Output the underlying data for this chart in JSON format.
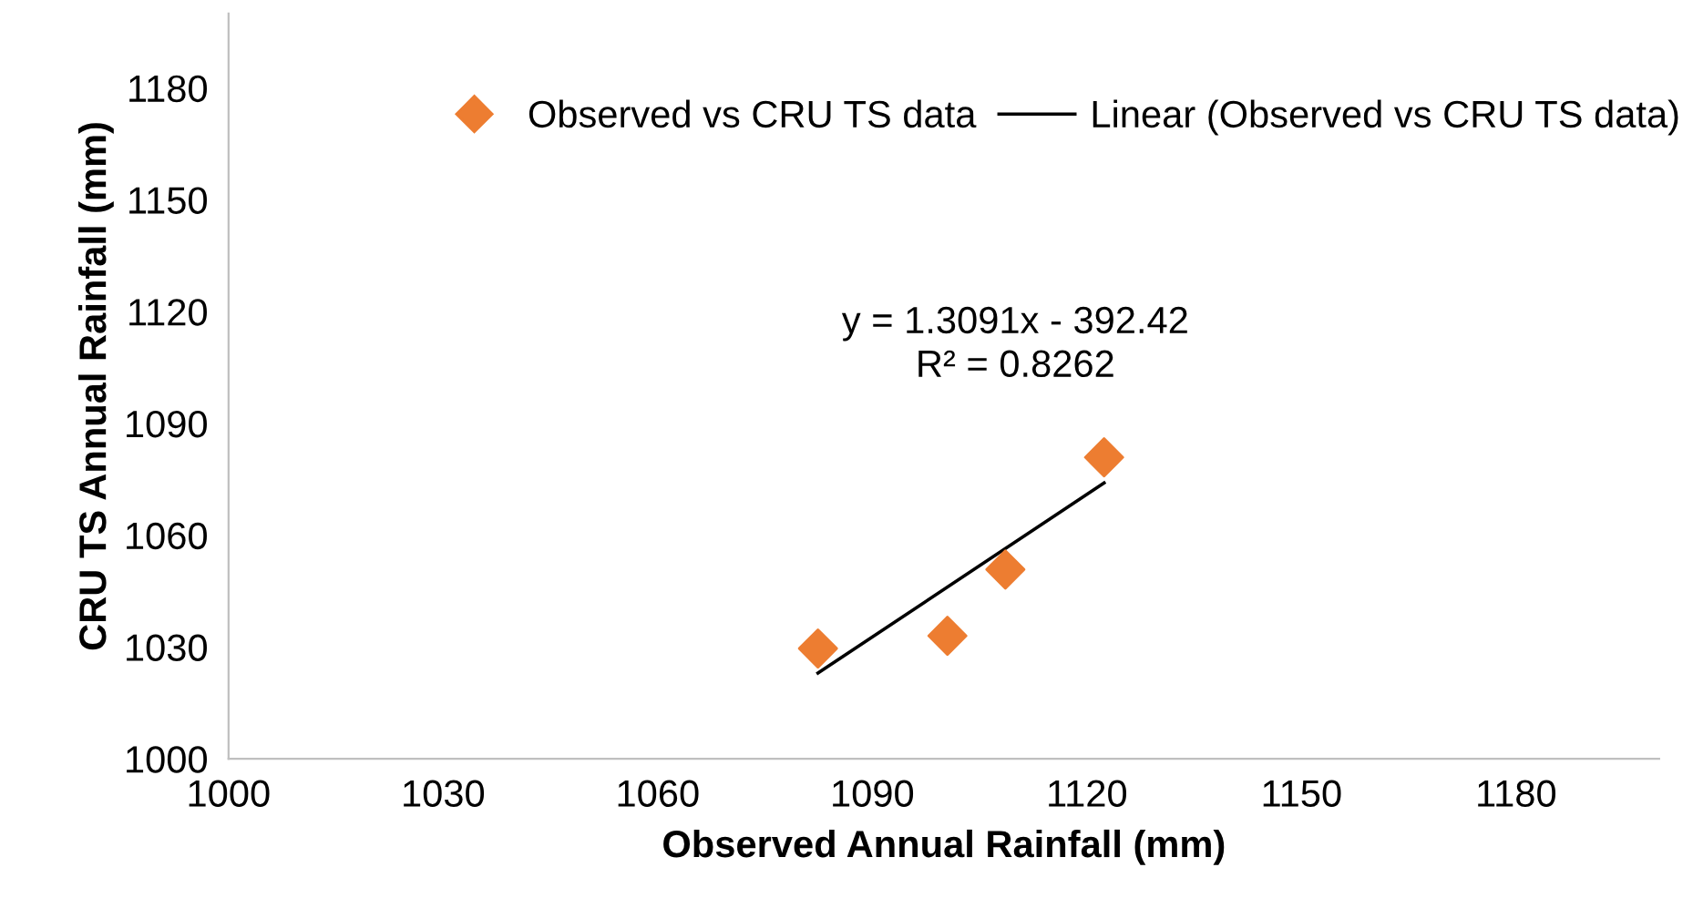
{
  "chart_data": {
    "type": "scatter",
    "xlabel": "Observed Annual Rainfall (mm)",
    "ylabel": "CRU TS Annual Rainfall (mm)",
    "xlim": [
      1000,
      1200
    ],
    "xticks": [
      1000,
      1030,
      1060,
      1090,
      1120,
      1150,
      1180
    ],
    "ylim": [
      1000,
      1200
    ],
    "yticks": [
      1000,
      1030,
      1060,
      1090,
      1120,
      1150,
      1180
    ],
    "grid": false,
    "legend": "top",
    "series": [
      {
        "name": "Observed vs CRU TS data",
        "marker": "diamond",
        "color": "#ed7d31",
        "x": [
          1082.4,
          1100.5,
          1108.6,
          1122.4
        ],
        "values": [
          1029.6,
          1033.0,
          1050.8,
          1080.9
        ]
      },
      {
        "name": "Linear (Observed vs CRU TS data)",
        "type": "line",
        "marker": "none",
        "line_style": "solid",
        "color": "#000000",
        "x": [
          1082.4,
          1122.4
        ],
        "values": [
          1023,
          1074
        ]
      }
    ],
    "annotations": [
      "y = 1.3091x - 392.42\nR² = 0.8262"
    ]
  }
}
